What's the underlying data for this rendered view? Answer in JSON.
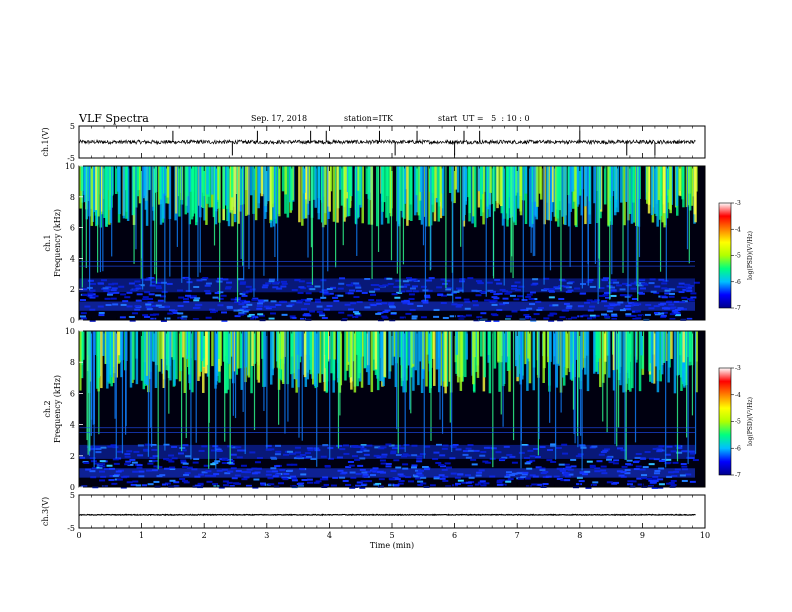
{
  "header": {
    "title": "VLF Spectra",
    "date": "Sep. 17, 2018",
    "station": "station=ITK",
    "start": "start  UT =   5  : 10 : 0"
  },
  "chart_data": [
    {
      "type": "line",
      "name": "ch1-waveform",
      "ylabel": "ch.1(V)",
      "ylim": [
        -5,
        5
      ],
      "yticks": [
        "5",
        "-5"
      ],
      "baseline": 0,
      "spike_times_min": [
        1.5,
        2.45,
        2.85,
        3.7,
        3.95,
        4.8,
        5.05,
        5.4,
        6.0,
        6.15,
        6.4,
        8.0,
        8.75,
        9.2
      ]
    },
    {
      "type": "heatmap",
      "name": "ch1-spectrogram",
      "ylabel": "ch.1\nFrequency (kHz)",
      "ylim": [
        0,
        10
      ],
      "yticks": [
        "0",
        "2",
        "4",
        "6",
        "8",
        "10"
      ],
      "colorbar": {
        "label": "log(PSD)(V²/Hz)",
        "range": [
          -7,
          -3
        ],
        "ticks": [
          "-3",
          "-4",
          "-5",
          "-6",
          "-7"
        ]
      }
    },
    {
      "type": "heatmap",
      "name": "ch2-spectrogram",
      "ylabel": "ch.2\nFrequency (kHz)",
      "ylim": [
        0,
        10
      ],
      "yticks": [
        "0",
        "2",
        "4",
        "6",
        "8",
        "10"
      ],
      "colorbar": {
        "label": "log(PSD)(V²/Hz)",
        "range": [
          -7,
          -3
        ],
        "ticks": [
          "-3",
          "-4",
          "-5",
          "-6",
          "-7"
        ]
      }
    },
    {
      "type": "line",
      "name": "ch3-waveform",
      "ylabel": "ch.3(V)",
      "ylim": [
        -5,
        5
      ],
      "yticks": [
        "5",
        "-5"
      ],
      "baseline": -1
    }
  ],
  "xaxis": {
    "label": "Time (min)",
    "xlim": [
      0,
      10
    ],
    "ticks": [
      "0",
      "1",
      "2",
      "3",
      "4",
      "5",
      "6",
      "7",
      "8",
      "9",
      "10"
    ]
  },
  "colors": {
    "background": "#000000",
    "colormap": [
      "#00008b",
      "#0000ff",
      "#00bfff",
      "#00ff80",
      "#b0ff00",
      "#ffff00",
      "#ff8000",
      "#ff0000",
      "#ffffff"
    ]
  }
}
